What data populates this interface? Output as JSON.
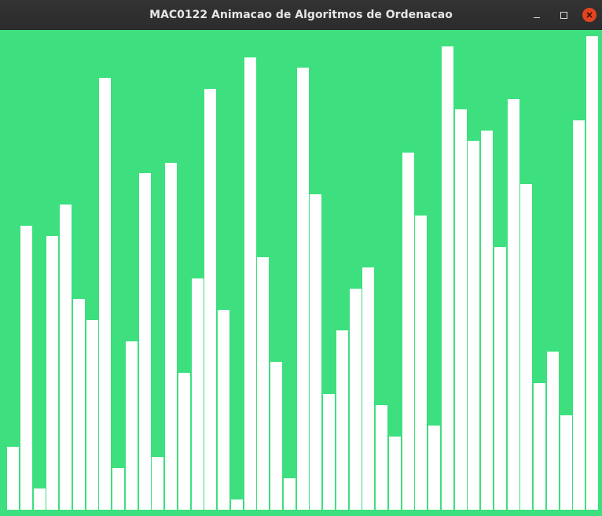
{
  "window": {
    "title": "MAC0122 Animacao de Algoritmos de Ordenacao",
    "controls": [
      "minimize-icon",
      "maximize-icon",
      "close-icon"
    ]
  },
  "colors": {
    "background": "#3ddf7e",
    "bar": "#ffffff",
    "titlebar": "#2e2e2e",
    "close_button": "#e3441f"
  },
  "chart_data": {
    "type": "bar",
    "values": [
      80,
      360,
      27,
      347,
      387,
      267,
      240,
      547,
      53,
      213,
      427,
      67,
      440,
      173,
      293,
      533,
      253,
      13,
      573,
      320,
      187,
      40,
      560,
      400,
      147,
      227,
      280,
      307,
      133,
      93,
      453,
      373,
      107,
      587,
      507,
      467,
      480,
      333,
      520,
      413,
      160,
      200,
      120,
      493,
      600
    ],
    "ylim": [
      0,
      608
    ]
  }
}
